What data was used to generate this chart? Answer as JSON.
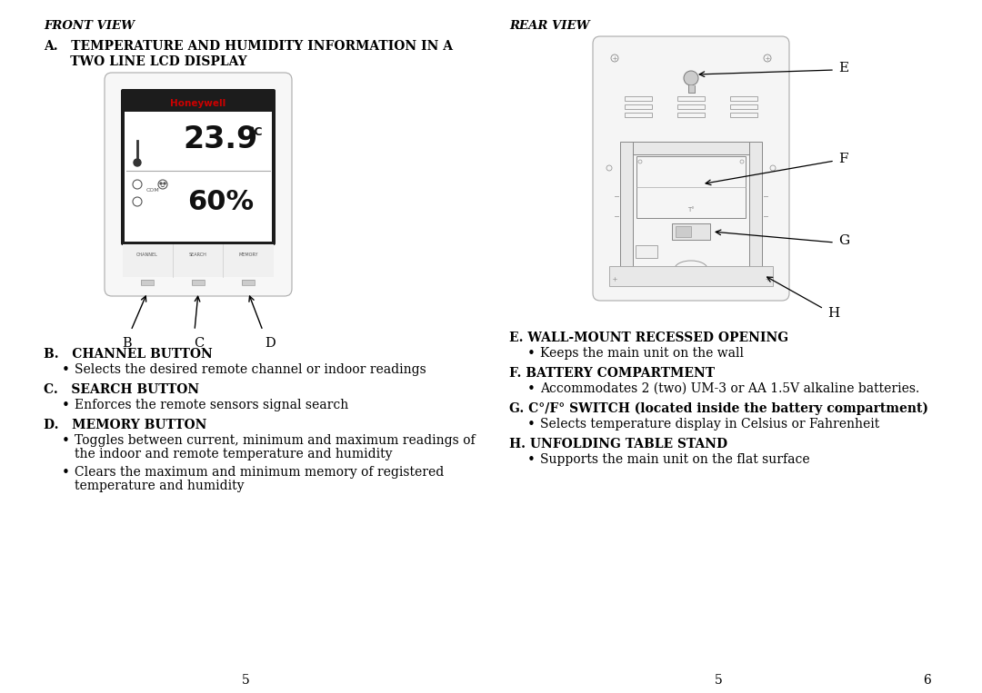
{
  "bg_color": "#ffffff",
  "text_color": "#000000",
  "left_col": {
    "front_view_label": "FRONT VIEW",
    "section_a_title": "A.   TEMPERATURE AND HUMIDITY INFORMATION IN A",
    "section_a_title2": "      TWO LINE LCD DISPLAY",
    "section_b_title": "B.   CHANNEL BUTTON",
    "section_b_bullet": "Selects the desired remote channel or indoor readings",
    "section_c_title": "C.   SEARCH BUTTON",
    "section_c_bullet": "Enforces the remote sensors signal search",
    "section_d_title": "D.   MEMORY BUTTON",
    "section_d_bullet1": "Toggles between current, minimum and maximum readings of",
    "section_d_bullet1b": "the indoor and remote temperature and humidity",
    "section_d_bullet2": "Clears the maximum and minimum memory of registered",
    "section_d_bullet2b": "temperature and humidity",
    "page_num_left": "5"
  },
  "right_col": {
    "rear_view_label": "REAR VIEW",
    "label_e": "E",
    "label_f": "F",
    "label_g": "G",
    "label_h": "H",
    "section_e_title": "E. WALL-MOUNT RECESSED OPENING",
    "section_e_bullet": "Keeps the main unit on the wall",
    "section_f_title": "F. BATTERY COMPARTMENT",
    "section_f_bullet": "Accommodates 2 (two) UM-3 or AA 1.5V alkaline batteries.",
    "section_g_title": "G. C°/F° SWITCH (located inside the battery compartment)",
    "section_g_bullet": "Selects temperature display in Celsius or Fahrenheit",
    "section_h_title": "H. UNFOLDING TABLE STAND",
    "section_h_bullet": "Supports the main unit on the flat surface",
    "page_num_center": "5",
    "page_num_right": "6"
  }
}
